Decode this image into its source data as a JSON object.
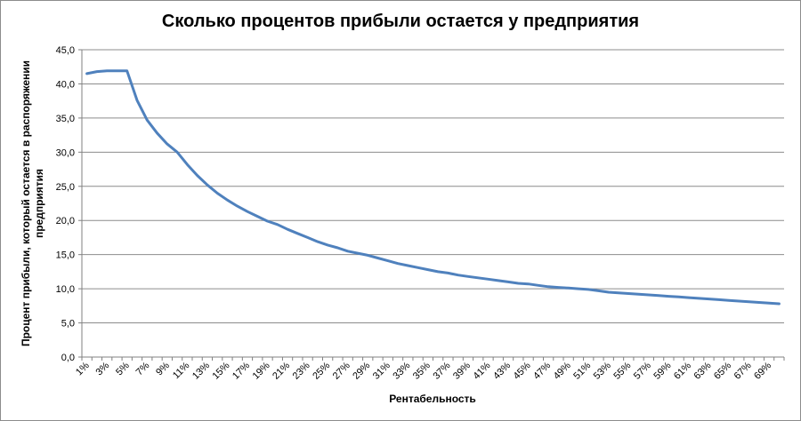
{
  "chart_data": {
    "type": "line",
    "title": "Сколько процентов прибыли остается у предприятия",
    "xlabel": "Рентабельность",
    "ylabel_lines": [
      "Процент прибыли, который остается в распоряжении",
      "предприятия"
    ],
    "ylim": [
      0,
      45
    ],
    "ytick_labels": [
      "0,0",
      "5,0",
      "10,0",
      "15,0",
      "20,0",
      "25,0",
      "30,0",
      "35,0",
      "40,0",
      "45,0"
    ],
    "grid": true,
    "legend": "none",
    "line_color": "#4f81bd",
    "x": [
      "1%",
      "2%",
      "3%",
      "4%",
      "5%",
      "6%",
      "7%",
      "8%",
      "9%",
      "10%",
      "11%",
      "12%",
      "13%",
      "14%",
      "15%",
      "16%",
      "17%",
      "18%",
      "19%",
      "20%",
      "21%",
      "22%",
      "23%",
      "24%",
      "25%",
      "26%",
      "27%",
      "28%",
      "29%",
      "30%",
      "31%",
      "32%",
      "33%",
      "34%",
      "35%",
      "36%",
      "37%",
      "38%",
      "39%",
      "40%",
      "41%",
      "42%",
      "43%",
      "44%",
      "45%",
      "46%",
      "47%",
      "48%",
      "49%",
      "50%",
      "51%",
      "52%",
      "53%",
      "54%",
      "55%",
      "56%",
      "57%",
      "58%",
      "59%",
      "60%",
      "61%",
      "62%",
      "63%",
      "64%",
      "65%",
      "66%",
      "67%",
      "68%",
      "69%",
      "70%"
    ],
    "xtick_labels": [
      "1%",
      "3%",
      "5%",
      "7%",
      "9%",
      "11%",
      "13%",
      "15%",
      "17%",
      "19%",
      "21%",
      "23%",
      "25%",
      "27%",
      "29%",
      "31%",
      "33%",
      "35%",
      "37%",
      "39%",
      "41%",
      "43%",
      "45%",
      "47%",
      "49%",
      "51%",
      "53%",
      "55%",
      "57%",
      "59%",
      "61%",
      "63%",
      "65%",
      "67%",
      "69%"
    ],
    "values": [
      41.5,
      41.8,
      41.9,
      41.9,
      41.9,
      37.6,
      34.7,
      32.8,
      31.2,
      30.0,
      28.2,
      26.6,
      25.2,
      24.0,
      23.0,
      22.1,
      21.3,
      20.6,
      19.9,
      19.4,
      18.7,
      18.1,
      17.5,
      16.9,
      16.4,
      16.0,
      15.5,
      15.2,
      14.9,
      14.5,
      14.1,
      13.7,
      13.4,
      13.1,
      12.8,
      12.5,
      12.3,
      12.0,
      11.8,
      11.6,
      11.4,
      11.2,
      11.0,
      10.8,
      10.7,
      10.5,
      10.3,
      10.2,
      10.1,
      10.0,
      9.9,
      9.7,
      9.5,
      9.4,
      9.3,
      9.2,
      9.1,
      9.0,
      8.9,
      8.8,
      8.7,
      8.6,
      8.5,
      8.4,
      8.3,
      8.2,
      8.1,
      8.0,
      7.9,
      7.8
    ]
  }
}
